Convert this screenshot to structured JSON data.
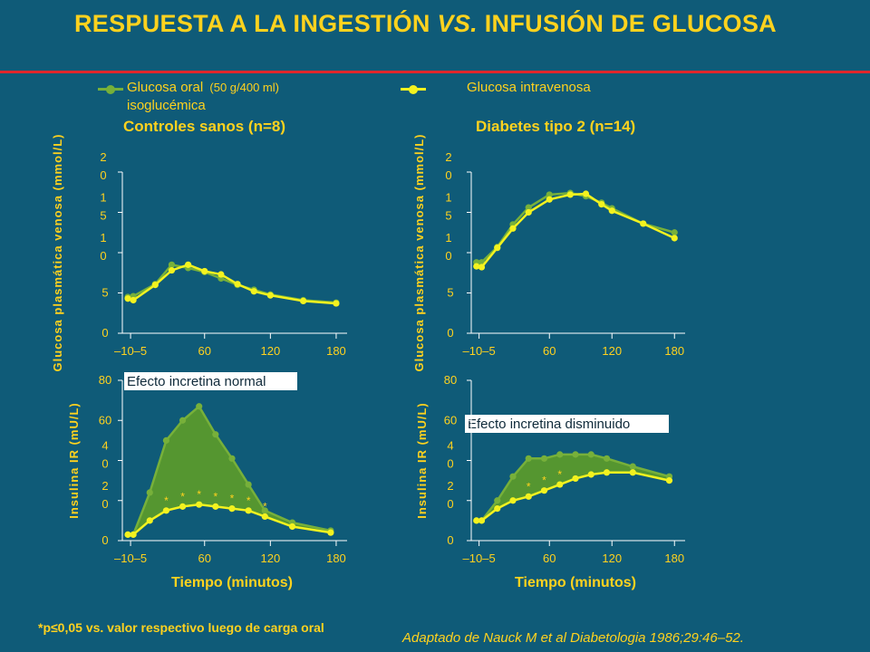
{
  "title_part1": "RESPUESTA A LA INGESTIÓN ",
  "title_vs": "VS.",
  "title_part2": " INFUSIÓN DE GLUCOSA",
  "legend": {
    "oral_label": "Glucosa oral",
    "oral_dose": "(50 g/400 ml)",
    "oral_label2": "isoglucémica",
    "iv_label": "Glucosa intravenosa"
  },
  "colors": {
    "background": "#0f5b78",
    "text": "#ffd21e",
    "oral": "#77b03a",
    "iv": "#f3f21f",
    "fill": "#5a9a2c",
    "title_rule": "#e0262b"
  },
  "panels": {
    "left_title": "Controles sanos (n=8)",
    "right_title": "Diabetes tipo 2 (n=14)"
  },
  "footnote": "*p≤0,05 vs. valor respectivo luego de carga oral",
  "source": "Adaptado de Nauck M et al Diabetologia 1986;29:46–52.",
  "chart_data": [
    {
      "id": "glucose-controls",
      "type": "line",
      "title": "Controles sanos (n=8)",
      "ylabel": "Glucosa plasmática venosa (mmol/L)",
      "xlabel": "",
      "x_ticks": [
        "–10–5",
        "60",
        "120",
        "180"
      ],
      "y_ticks": [
        "0",
        "5",
        "10",
        "15",
        "20"
      ],
      "xlim": [
        -15,
        185
      ],
      "ylim": [
        0,
        20
      ],
      "x": [
        -10,
        -5,
        15,
        30,
        45,
        60,
        75,
        90,
        105,
        120,
        150,
        180
      ],
      "series": [
        {
          "name": "Glucosa oral (50 g/400 ml)",
          "color": "#77b03a",
          "values": [
            4.5,
            4.6,
            6.1,
            8.5,
            8.1,
            7.6,
            6.8,
            6.0,
            5.4,
            4.8,
            4.1,
            3.8
          ]
        },
        {
          "name": "Glucosa intravenosa",
          "color": "#f3f21f",
          "values": [
            4.3,
            4.1,
            6.0,
            7.8,
            8.5,
            7.7,
            7.3,
            6.1,
            5.2,
            4.7,
            4.0,
            3.7
          ]
        }
      ]
    },
    {
      "id": "glucose-diabetes",
      "type": "line",
      "title": "Diabetes tipo 2 (n=14)",
      "ylabel": "Glucosa plasmática venosa (mmol/L)",
      "xlabel": "",
      "x_ticks": [
        "–10–5",
        "60",
        "120",
        "180"
      ],
      "y_ticks": [
        "0",
        "5",
        "10",
        "15",
        "20"
      ],
      "xlim": [
        -15,
        185
      ],
      "ylim": [
        0,
        20
      ],
      "x": [
        -10,
        -5,
        10,
        25,
        40,
        60,
        80,
        95,
        110,
        120,
        150,
        180
      ],
      "series": [
        {
          "name": "Glucosa oral (50 g/400 ml)",
          "color": "#77b03a",
          "values": [
            8.8,
            8.8,
            10.7,
            13.5,
            15.6,
            17.2,
            17.4,
            17.0,
            16.2,
            15.5,
            13.6,
            12.5
          ]
        },
        {
          "name": "Glucosa intravenosa",
          "color": "#f3f21f",
          "values": [
            8.3,
            8.2,
            10.6,
            13.0,
            15.0,
            16.6,
            17.2,
            17.3,
            16.0,
            15.2,
            13.6,
            11.8
          ]
        }
      ]
    },
    {
      "id": "insulin-controls",
      "type": "area",
      "annotation": "Efecto incretina normal",
      "ylabel": "Insulina IR (mU/L)",
      "xlabel": "Tiempo (minutos)",
      "x_ticks": [
        "–10–5",
        "60",
        "120",
        "180"
      ],
      "y_ticks": [
        "0",
        "20",
        "40",
        "60",
        "80"
      ],
      "xlim": [
        -15,
        185
      ],
      "ylim": [
        0,
        80
      ],
      "x": [
        -10,
        -5,
        10,
        25,
        40,
        55,
        70,
        85,
        100,
        115,
        140,
        175
      ],
      "series": [
        {
          "name": "Glucosa oral (50 g/400 ml)",
          "color": "#77b03a",
          "values": [
            3,
            3,
            24,
            50,
            60,
            67,
            53,
            41,
            28,
            15,
            9,
            5
          ]
        },
        {
          "name": "Glucosa intravenosa",
          "color": "#f3f21f",
          "values": [
            3,
            3,
            10,
            15,
            17,
            18,
            17,
            16,
            15,
            12,
            7,
            4
          ]
        }
      ],
      "significant_marks": [
        25,
        40,
        55,
        70,
        85,
        100,
        115
      ]
    },
    {
      "id": "insulin-diabetes",
      "type": "area",
      "annotation": "Efecto incretina disminuido",
      "ylabel": "Insulina IR (mU/L)",
      "xlabel": "Tiempo (minutos)",
      "x_ticks": [
        "–10–5",
        "60",
        "120",
        "180"
      ],
      "y_ticks": [
        "0",
        "20",
        "40",
        "60",
        "80"
      ],
      "xlim": [
        -15,
        185
      ],
      "ylim": [
        0,
        80
      ],
      "x": [
        -10,
        -5,
        10,
        25,
        40,
        55,
        70,
        85,
        100,
        115,
        140,
        175
      ],
      "series": [
        {
          "name": "Glucosa oral (50 g/400 ml)",
          "color": "#77b03a",
          "values": [
            10,
            10,
            20,
            32,
            41,
            41,
            43,
            43,
            43,
            41,
            37,
            32
          ]
        },
        {
          "name": "Glucosa intravenosa",
          "color": "#f3f21f",
          "values": [
            10,
            10,
            16,
            20,
            22,
            25,
            28,
            31,
            33,
            34,
            34,
            30
          ]
        }
      ],
      "significant_marks": [
        40,
        55,
        70
      ]
    }
  ]
}
